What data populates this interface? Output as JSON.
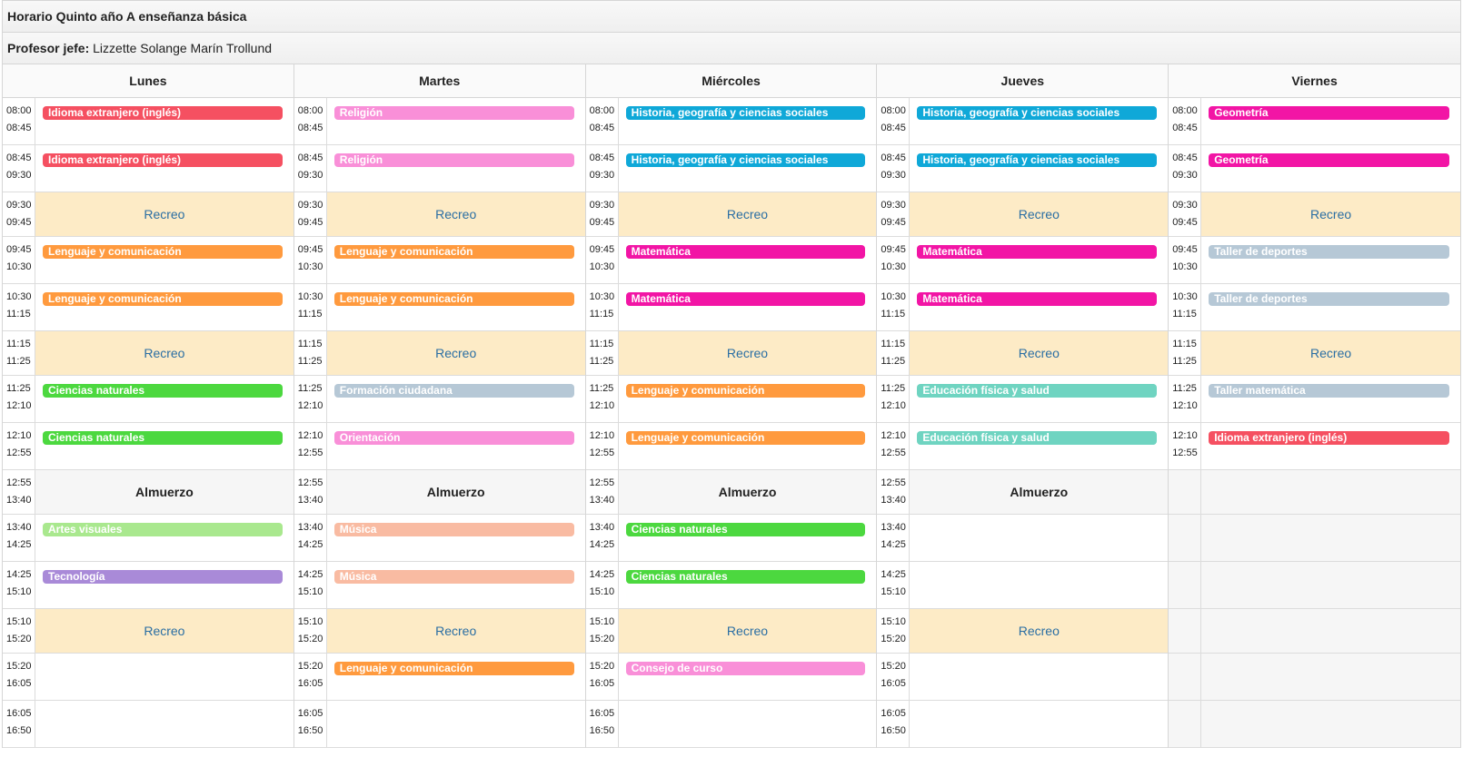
{
  "title": "Horario Quinto año A enseñanza básica",
  "teacher_label": "Profesor jefe:",
  "teacher_name": "Lizzette Solange Marín Trollund",
  "colors": {
    "ingles": "#f55061",
    "religion": "#f98fd8",
    "historia": "#0fa8d8",
    "geometria": "#f215a5",
    "lenguaje": "#ff9a3e",
    "matematica": "#f215a5",
    "taller": "#b6c8d6",
    "ciencias": "#4cd83f",
    "formacion": "#b6c8d6",
    "educacion": "#6fd4c1",
    "orientacion": "#f98fd8",
    "artes": "#a9e88e",
    "musica": "#f9bba2",
    "tecnologia": "#a98ad8",
    "consejo": "#f98fd8"
  },
  "days": [
    {
      "name": "Lunes",
      "slots": [
        {
          "start": "08:00",
          "end": "08:45",
          "type": "class",
          "label": "Idioma extranjero (inglés)",
          "color": "#f55061"
        },
        {
          "start": "08:45",
          "end": "09:30",
          "type": "class",
          "label": "Idioma extranjero (inglés)",
          "color": "#f55061"
        },
        {
          "start": "09:30",
          "end": "09:45",
          "type": "break",
          "label": "Recreo"
        },
        {
          "start": "09:45",
          "end": "10:30",
          "type": "class",
          "label": "Lenguaje y comunicación",
          "color": "#ff9a3e"
        },
        {
          "start": "10:30",
          "end": "11:15",
          "type": "class",
          "label": "Lenguaje y comunicación",
          "color": "#ff9a3e"
        },
        {
          "start": "11:15",
          "end": "11:25",
          "type": "break",
          "label": "Recreo"
        },
        {
          "start": "11:25",
          "end": "12:10",
          "type": "class",
          "label": "Ciencias naturales",
          "color": "#4cd83f"
        },
        {
          "start": "12:10",
          "end": "12:55",
          "type": "class",
          "label": "Ciencias naturales",
          "color": "#4cd83f"
        },
        {
          "start": "12:55",
          "end": "13:40",
          "type": "lunch",
          "label": "Almuerzo"
        },
        {
          "start": "13:40",
          "end": "14:25",
          "type": "class",
          "label": "Artes visuales",
          "color": "#a9e88e"
        },
        {
          "start": "14:25",
          "end": "15:10",
          "type": "class",
          "label": "Tecnología",
          "color": "#a98ad8"
        },
        {
          "start": "15:10",
          "end": "15:20",
          "type": "break",
          "label": "Recreo"
        },
        {
          "start": "15:20",
          "end": "16:05",
          "type": "empty",
          "label": ""
        },
        {
          "start": "16:05",
          "end": "16:50",
          "type": "empty",
          "label": ""
        }
      ]
    },
    {
      "name": "Martes",
      "slots": [
        {
          "start": "08:00",
          "end": "08:45",
          "type": "class",
          "label": "Religión",
          "color": "#f98fd8"
        },
        {
          "start": "08:45",
          "end": "09:30",
          "type": "class",
          "label": "Religión",
          "color": "#f98fd8"
        },
        {
          "start": "09:30",
          "end": "09:45",
          "type": "break",
          "label": "Recreo"
        },
        {
          "start": "09:45",
          "end": "10:30",
          "type": "class",
          "label": "Lenguaje y comunicación",
          "color": "#ff9a3e"
        },
        {
          "start": "10:30",
          "end": "11:15",
          "type": "class",
          "label": "Lenguaje y comunicación",
          "color": "#ff9a3e"
        },
        {
          "start": "11:15",
          "end": "11:25",
          "type": "break",
          "label": "Recreo"
        },
        {
          "start": "11:25",
          "end": "12:10",
          "type": "class",
          "label": "Formación ciudadana",
          "color": "#b6c8d6"
        },
        {
          "start": "12:10",
          "end": "12:55",
          "type": "class",
          "label": "Orientación",
          "color": "#f98fd8"
        },
        {
          "start": "12:55",
          "end": "13:40",
          "type": "lunch",
          "label": "Almuerzo"
        },
        {
          "start": "13:40",
          "end": "14:25",
          "type": "class",
          "label": "Música",
          "color": "#f9bba2"
        },
        {
          "start": "14:25",
          "end": "15:10",
          "type": "class",
          "label": "Música",
          "color": "#f9bba2"
        },
        {
          "start": "15:10",
          "end": "15:20",
          "type": "break",
          "label": "Recreo"
        },
        {
          "start": "15:20",
          "end": "16:05",
          "type": "class",
          "label": "Lenguaje y comunicación",
          "color": "#ff9a3e"
        },
        {
          "start": "16:05",
          "end": "16:50",
          "type": "empty",
          "label": ""
        }
      ]
    },
    {
      "name": "Miércoles",
      "slots": [
        {
          "start": "08:00",
          "end": "08:45",
          "type": "class",
          "label": "Historia, geografía y ciencias sociales",
          "color": "#0fa8d8"
        },
        {
          "start": "08:45",
          "end": "09:30",
          "type": "class",
          "label": "Historia, geografía y ciencias sociales",
          "color": "#0fa8d8"
        },
        {
          "start": "09:30",
          "end": "09:45",
          "type": "break",
          "label": "Recreo"
        },
        {
          "start": "09:45",
          "end": "10:30",
          "type": "class",
          "label": "Matemática",
          "color": "#f215a5"
        },
        {
          "start": "10:30",
          "end": "11:15",
          "type": "class",
          "label": "Matemática",
          "color": "#f215a5"
        },
        {
          "start": "11:15",
          "end": "11:25",
          "type": "break",
          "label": "Recreo"
        },
        {
          "start": "11:25",
          "end": "12:10",
          "type": "class",
          "label": "Lenguaje y comunicación",
          "color": "#ff9a3e"
        },
        {
          "start": "12:10",
          "end": "12:55",
          "type": "class",
          "label": "Lenguaje y comunicación",
          "color": "#ff9a3e"
        },
        {
          "start": "12:55",
          "end": "13:40",
          "type": "lunch",
          "label": "Almuerzo"
        },
        {
          "start": "13:40",
          "end": "14:25",
          "type": "class",
          "label": "Ciencias naturales",
          "color": "#4cd83f"
        },
        {
          "start": "14:25",
          "end": "15:10",
          "type": "class",
          "label": "Ciencias naturales",
          "color": "#4cd83f"
        },
        {
          "start": "15:10",
          "end": "15:20",
          "type": "break",
          "label": "Recreo"
        },
        {
          "start": "15:20",
          "end": "16:05",
          "type": "class",
          "label": "Consejo de curso",
          "color": "#f98fd8"
        },
        {
          "start": "16:05",
          "end": "16:50",
          "type": "empty",
          "label": ""
        }
      ]
    },
    {
      "name": "Jueves",
      "slots": [
        {
          "start": "08:00",
          "end": "08:45",
          "type": "class",
          "label": "Historia, geografía y ciencias sociales",
          "color": "#0fa8d8"
        },
        {
          "start": "08:45",
          "end": "09:30",
          "type": "class",
          "label": "Historia, geografía y ciencias sociales",
          "color": "#0fa8d8"
        },
        {
          "start": "09:30",
          "end": "09:45",
          "type": "break",
          "label": "Recreo"
        },
        {
          "start": "09:45",
          "end": "10:30",
          "type": "class",
          "label": "Matemática",
          "color": "#f215a5"
        },
        {
          "start": "10:30",
          "end": "11:15",
          "type": "class",
          "label": "Matemática",
          "color": "#f215a5"
        },
        {
          "start": "11:15",
          "end": "11:25",
          "type": "break",
          "label": "Recreo"
        },
        {
          "start": "11:25",
          "end": "12:10",
          "type": "class",
          "label": "Educación física y salud",
          "color": "#6fd4c1"
        },
        {
          "start": "12:10",
          "end": "12:55",
          "type": "class",
          "label": "Educación física y salud",
          "color": "#6fd4c1"
        },
        {
          "start": "12:55",
          "end": "13:40",
          "type": "lunch",
          "label": "Almuerzo"
        },
        {
          "start": "13:40",
          "end": "14:25",
          "type": "empty",
          "label": ""
        },
        {
          "start": "14:25",
          "end": "15:10",
          "type": "empty",
          "label": ""
        },
        {
          "start": "15:10",
          "end": "15:20",
          "type": "break",
          "label": "Recreo"
        },
        {
          "start": "15:20",
          "end": "16:05",
          "type": "empty",
          "label": ""
        },
        {
          "start": "16:05",
          "end": "16:50",
          "type": "empty",
          "label": ""
        }
      ]
    },
    {
      "name": "Viernes",
      "slots": [
        {
          "start": "08:00",
          "end": "08:45",
          "type": "class",
          "label": "Geometría",
          "color": "#f215a5"
        },
        {
          "start": "08:45",
          "end": "09:30",
          "type": "class",
          "label": "Geometría",
          "color": "#f215a5"
        },
        {
          "start": "09:30",
          "end": "09:45",
          "type": "break",
          "label": "Recreo"
        },
        {
          "start": "09:45",
          "end": "10:30",
          "type": "class",
          "label": "Taller de deportes",
          "color": "#b6c8d6"
        },
        {
          "start": "10:30",
          "end": "11:15",
          "type": "class",
          "label": "Taller de deportes",
          "color": "#b6c8d6"
        },
        {
          "start": "11:15",
          "end": "11:25",
          "type": "break",
          "label": "Recreo"
        },
        {
          "start": "11:25",
          "end": "12:10",
          "type": "class",
          "label": "Taller matemática",
          "color": "#b6c8d6"
        },
        {
          "start": "12:10",
          "end": "12:55",
          "type": "class",
          "label": "Idioma extranjero (inglés)",
          "color": "#f55061"
        },
        {
          "start": "",
          "end": "",
          "type": "blank",
          "label": ""
        },
        {
          "start": "",
          "end": "",
          "type": "blank",
          "label": ""
        },
        {
          "start": "",
          "end": "",
          "type": "blank",
          "label": ""
        },
        {
          "start": "",
          "end": "",
          "type": "blank",
          "label": ""
        },
        {
          "start": "",
          "end": "",
          "type": "blank",
          "label": ""
        },
        {
          "start": "",
          "end": "",
          "type": "blank",
          "label": ""
        }
      ]
    }
  ]
}
